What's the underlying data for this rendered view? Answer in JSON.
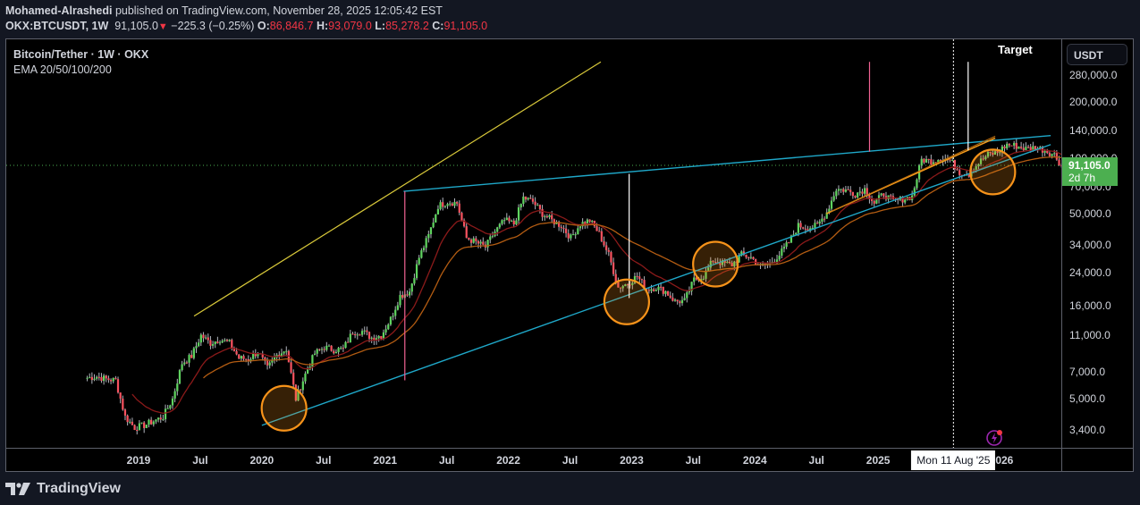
{
  "header": {
    "author": "Mohamed-Alrashedi",
    "published": "published on TradingView.com, November 28, 2025 12:05:42 EST",
    "symbol": "OKX:BTCUSDT, 1W",
    "last": "91,105.0",
    "change_arrow": "▼",
    "change": "−225.3 (−0.25%)",
    "o_label": "O:",
    "o": "86,846.7",
    "h_label": "H:",
    "h": "93,079.0",
    "l_label": "L:",
    "l": "85,278.2",
    "c_label": "C:",
    "c": "91,105.0"
  },
  "legend": {
    "title": "Bitcoin/Tether · 1W · OKX",
    "indicator": "EMA 20/50/100/200"
  },
  "price_axis": {
    "currency": "USDT",
    "ticks": [
      "280,000.0",
      "200,000.0",
      "140,000.0",
      "100,000.0",
      "70,000.0",
      "50,000.0",
      "34,000.0",
      "24,000.0",
      "16,000.0",
      "11,000.0",
      "7,000.0",
      "5,000.0",
      "3,400.0"
    ],
    "current_price": "91,105.0",
    "countdown": "2d 7h"
  },
  "time_axis": {
    "ticks": [
      "2019",
      "Jul",
      "2020",
      "Jul",
      "2021",
      "Jul",
      "2022",
      "Jul",
      "2023",
      "Jul",
      "2024",
      "Jul",
      "2025",
      "2026"
    ],
    "crosshair_label": "Mon 11 Aug '25"
  },
  "annotations": {
    "target_label": "Target"
  },
  "footer": {
    "brand": "TradingView"
  },
  "colors": {
    "background": "#000000",
    "up": "#5fd35f",
    "down": "#f7525f",
    "ema20": "#8b1a1a",
    "ema50": "#b35c12",
    "channel": "#1fa8c9",
    "yellow_line": "#d9c93a",
    "orange_line": "#f59a1a",
    "pink_line": "#f06292",
    "circle": "#f7931a",
    "price_tag": "#4caf50"
  },
  "chart_data": {
    "type": "candlestick",
    "title": "Bitcoin/Tether · 1W · OKX",
    "indicator": "EMA 20/50/100/200",
    "scale": "log",
    "ylim": [
      3000,
      330000
    ],
    "yticks": [
      280000,
      200000,
      140000,
      100000,
      70000,
      50000,
      34000,
      24000,
      16000,
      11000,
      7000,
      5000,
      3400
    ],
    "xticks": [
      "2019",
      "Jul",
      "2020",
      "Jul",
      "2021",
      "Jul",
      "2022",
      "Jul",
      "2023",
      "Jul",
      "2024",
      "Jul",
      "2025",
      "2026"
    ],
    "last": {
      "open": 86846.7,
      "high": 93079.0,
      "low": 85278.2,
      "close": 91105.0,
      "change": -225.3,
      "change_pct": -0.25
    },
    "weekly_close_path": {
      "start": "2018-08",
      "step_weeks": 4,
      "closes": [
        6500,
        6600,
        6400,
        6300,
        4000,
        3500,
        3600,
        3800,
        4000,
        5000,
        7800,
        8500,
        11000,
        10000,
        10500,
        10000,
        8300,
        8200,
        9000,
        7300,
        8600,
        9300,
        5000,
        6800,
        8800,
        9500,
        9200,
        9300,
        11500,
        11600,
        10700,
        11000,
        13500,
        18000,
        19000,
        29000,
        38000,
        55000,
        58000,
        57000,
        37000,
        35000,
        33000,
        40000,
        46000,
        44000,
        61000,
        58000,
        50000,
        46000,
        43000,
        37000,
        44000,
        46000,
        39000,
        30000,
        20000,
        21000,
        23000,
        19500,
        20000,
        19000,
        16800,
        16900,
        22000,
        23000,
        28000,
        27000,
        26500,
        30000,
        29000,
        26000,
        27000,
        30000,
        35000,
        43000,
        42000,
        43000,
        51000,
        68000,
        67000,
        64000,
        68000,
        57000,
        64000,
        58000,
        60000,
        62000,
        98000,
        96000,
        100000,
        97000,
        84000,
        82000,
        94000,
        104000,
        107000,
        118000,
        116000,
        112000,
        114000,
        110000,
        104000,
        87000,
        91105
      ]
    },
    "drawings": [
      {
        "type": "trendline",
        "color": "yellow",
        "from": [
          "2019-06",
          14000
        ],
        "to": [
          "2022-12",
          330000
        ]
      },
      {
        "type": "trendline",
        "color": "cyan",
        "label": "upper channel",
        "from": [
          "2021-03",
          66000
        ],
        "to": [
          "2026-02",
          130000
        ]
      },
      {
        "type": "trendline",
        "color": "cyan",
        "label": "lower channel",
        "from": [
          "2020-03",
          3700
        ],
        "to": [
          "2026-02",
          100000
        ]
      },
      {
        "type": "trendline",
        "color": "orange",
        "from": [
          "2024-08",
          50000
        ],
        "to": [
          "2025-12",
          125000
        ]
      },
      {
        "type": "vline",
        "color": "pink",
        "at": "2021-03",
        "range": [
          6300,
          66000
        ]
      },
      {
        "type": "vline",
        "color": "pink",
        "at": "2024-12",
        "range": [
          100000,
          330000
        ]
      },
      {
        "type": "vline",
        "color": "white",
        "at": "2022-12",
        "range": [
          17500,
          80000
        ]
      },
      {
        "type": "vline",
        "color": "white",
        "at": "2025-10",
        "label": "Target",
        "range": [
          110000,
          330000
        ]
      },
      {
        "type": "circle",
        "at": [
          "2020-03",
          4500
        ]
      },
      {
        "type": "circle",
        "at": [
          "2022-12",
          16500
        ]
      },
      {
        "type": "circle",
        "at": [
          "2023-09",
          26500
        ]
      },
      {
        "type": "circle",
        "at": [
          "2025-11",
          86000
        ]
      }
    ]
  }
}
